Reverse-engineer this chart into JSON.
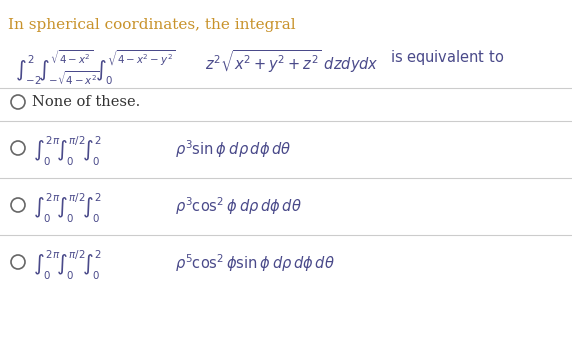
{
  "title_text": "In spherical coordinates, the integral",
  "title_color": "#c8922a",
  "bg_color": "#ffffff",
  "separator_color": "#cccccc",
  "math_color": "#4a4a8a",
  "text_color": "#4a4a8a",
  "radio_color": "#666666",
  "none_color": "#333333",
  "integral_main": "\\int_{-2}^{2} \\int_{-\\sqrt{4-x^2}}^{\\sqrt{4-x^2}} \\int_{0}^{\\sqrt{4-x^2-y^2}} z^2\\sqrt{x^2+y^2+z^2}\\, dz\\, dy\\, dx \\text{ is equivalent to}",
  "option_none": "None of these.",
  "option1": "\\int_{0}^{2\\pi}\\int_{0}^{\\pi/2}\\int_{0}^{2} \\rho^{3}\\sin\\phi\\, d\\rho\\, d\\phi\\, d\\theta",
  "option2": "\\int_{0}^{2\\pi}\\int_{0}^{\\pi/2}\\int_{0}^{2} \\rho^{3}\\cos^{2}\\phi\\, d\\rho\\, d\\phi\\, d\\theta",
  "option3": "\\int_{0}^{2\\pi}\\int_{0}^{\\pi/2}\\int_{0}^{2} \\rho^{5}\\cos^{2}\\phi\\sin\\phi\\, d\\rho\\, d\\phi\\, d\\theta"
}
